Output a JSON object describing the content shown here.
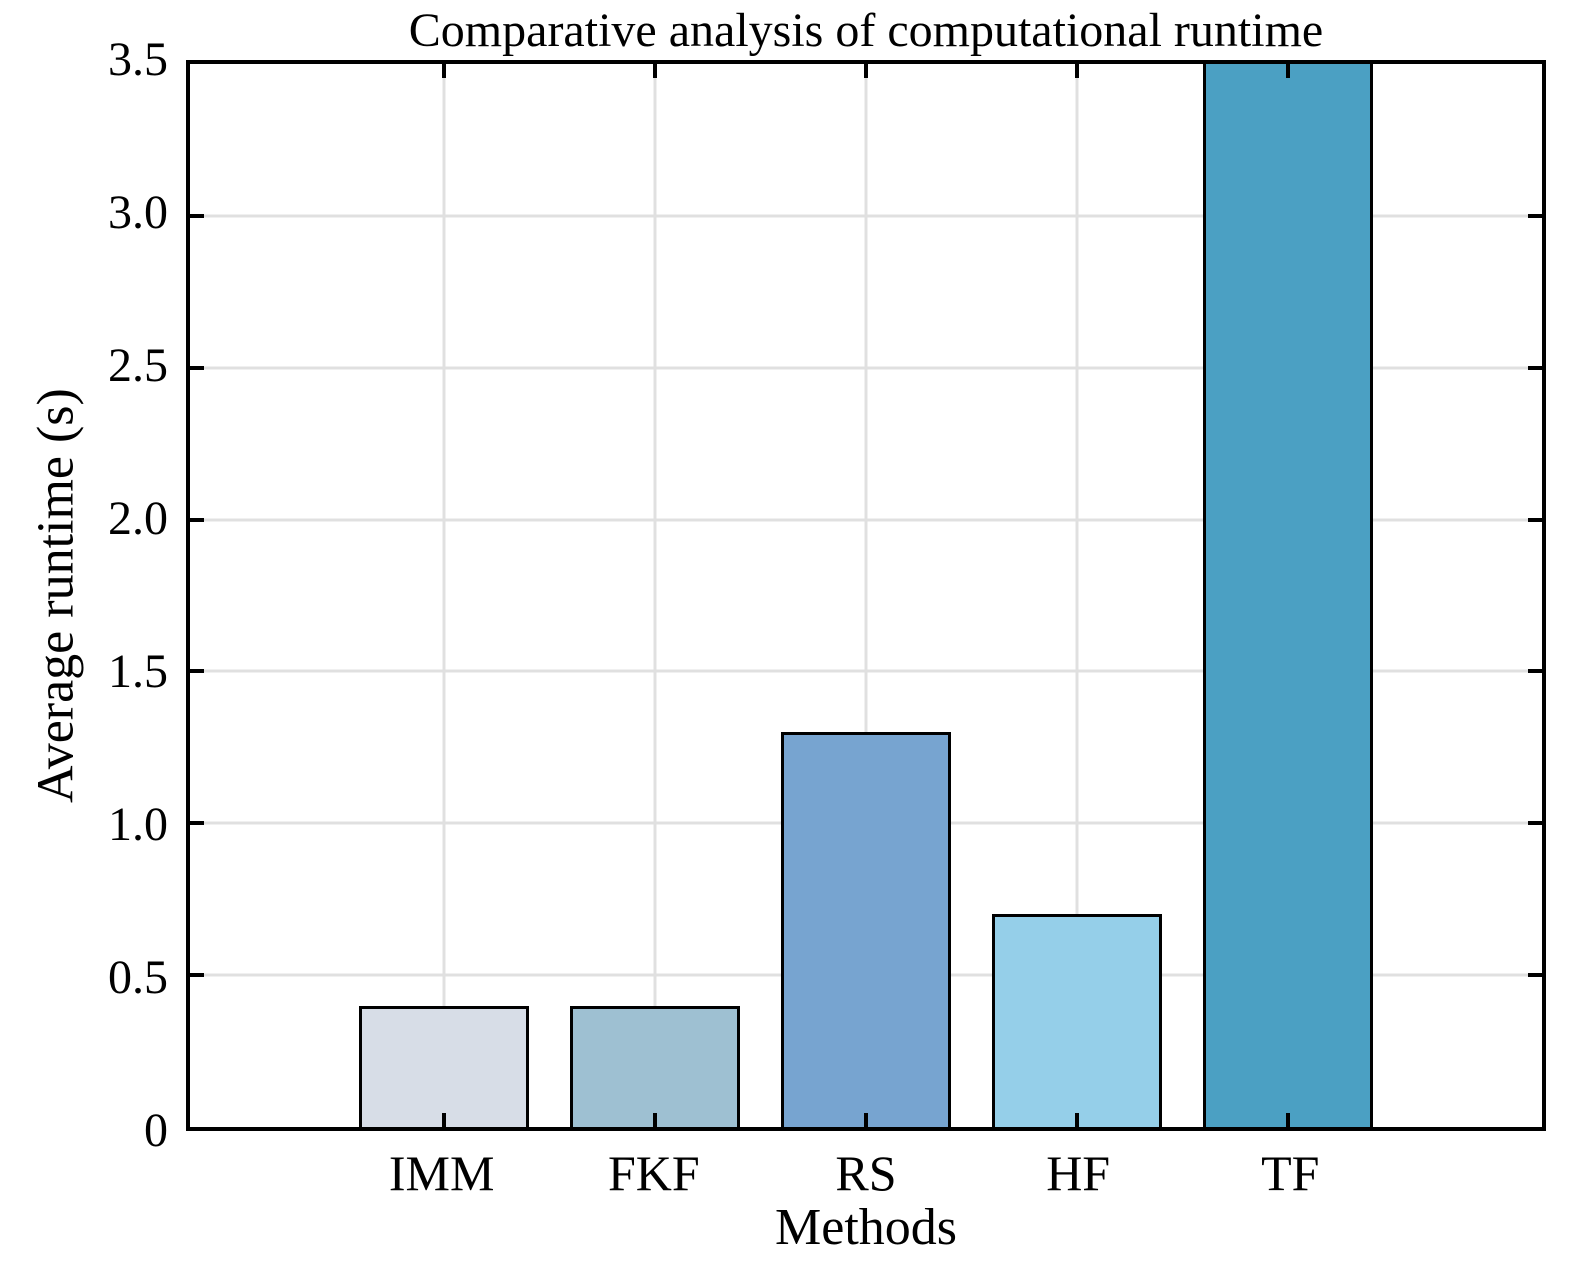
{
  "figure": {
    "title": "Comparative analysis of computational runtime"
  },
  "chart_data": {
    "type": "bar",
    "title": "Comparative analysis of computational runtime",
    "xlabel": "Methods",
    "ylabel": "Average runtime (s)",
    "categories": [
      "IMM",
      "FKF",
      "RS",
      "HF",
      "TF"
    ],
    "values": [
      0.4,
      0.4,
      1.3,
      0.7,
      3.5
    ],
    "clipped_at_top": [
      false,
      false,
      false,
      false,
      true
    ],
    "ylim": [
      0,
      3.5
    ],
    "ytick_step": 0.5,
    "ytick_labels": [
      "0",
      "0.5",
      "1.0",
      "1.5",
      "2.0",
      "2.5",
      "3.0",
      "3.5"
    ],
    "grid": true,
    "legend": "none",
    "bar_colors": [
      "#d7dde7",
      "#9ec0d2",
      "#77a4d0",
      "#95cfe9",
      "#4ba0c3"
    ],
    "bar_edge_color": "#000000",
    "gridline_color": "#e0e0e0",
    "spine_color": "#000000",
    "text_color": "#000000"
  }
}
